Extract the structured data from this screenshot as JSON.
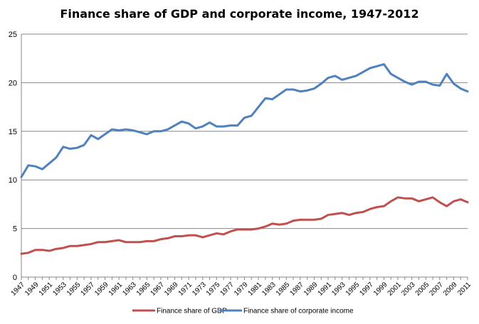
{
  "chart_data": {
    "type": "line",
    "title": "Finance share of GDP and corporate income, 1947-2012",
    "xlabel": "",
    "ylabel": "",
    "ylim": [
      0,
      25
    ],
    "yticks": [
      "0",
      "5",
      "10",
      "15",
      "20",
      "25"
    ],
    "x_tick_labels": [
      "1947",
      "1949",
      "1951",
      "1953",
      "1955",
      "1957",
      "1959",
      "1961",
      "1963",
      "1965",
      "1967",
      "1969",
      "1971",
      "1973",
      "1975",
      "1977",
      "1979",
      "1981",
      "1983",
      "1985",
      "1987",
      "1989",
      "1991",
      "1993",
      "1995",
      "1997",
      "1999",
      "2001",
      "2003",
      "2005",
      "2007",
      "2009",
      "2011"
    ],
    "x": [
      1947,
      1948,
      1949,
      1950,
      1951,
      1952,
      1953,
      1954,
      1955,
      1956,
      1957,
      1958,
      1959,
      1960,
      1961,
      1962,
      1963,
      1964,
      1965,
      1966,
      1967,
      1968,
      1969,
      1970,
      1971,
      1972,
      1973,
      1974,
      1975,
      1976,
      1977,
      1978,
      1979,
      1980,
      1981,
      1982,
      1983,
      1984,
      1985,
      1986,
      1987,
      1988,
      1989,
      1990,
      1991,
      1992,
      1993,
      1994,
      1995,
      1996,
      1997,
      1998,
      1999,
      2000,
      2001,
      2002,
      2003,
      2004,
      2005,
      2006,
      2007,
      2008,
      2009,
      2010,
      2011
    ],
    "grid": true,
    "legend_position": "bottom",
    "series": [
      {
        "name": "Finance share of GDP",
        "color": "#c0504d",
        "values": [
          2.4,
          2.5,
          2.8,
          2.8,
          2.7,
          2.9,
          3.0,
          3.2,
          3.2,
          3.3,
          3.4,
          3.6,
          3.6,
          3.7,
          3.8,
          3.6,
          3.6,
          3.6,
          3.7,
          3.7,
          3.9,
          4.0,
          4.2,
          4.2,
          4.3,
          4.3,
          4.1,
          4.3,
          4.5,
          4.4,
          4.7,
          4.9,
          4.9,
          4.9,
          5.0,
          5.2,
          5.5,
          5.4,
          5.5,
          5.8,
          5.9,
          5.9,
          5.9,
          6.0,
          6.4,
          6.5,
          6.6,
          6.4,
          6.6,
          6.7,
          7.0,
          7.2,
          7.3,
          7.8,
          8.2,
          8.1,
          8.1,
          7.8,
          8.0,
          8.2,
          7.7,
          7.3,
          7.8,
          8.0,
          7.7
        ]
      },
      {
        "name": "Finance share of corporate income",
        "color": "#4f81bd",
        "values": [
          10.3,
          11.5,
          11.4,
          11.1,
          11.7,
          12.3,
          13.4,
          13.2,
          13.3,
          13.6,
          14.6,
          14.2,
          14.7,
          15.2,
          15.1,
          15.2,
          15.1,
          14.9,
          14.7,
          15.0,
          15.0,
          15.2,
          15.6,
          16.0,
          15.8,
          15.3,
          15.5,
          15.9,
          15.5,
          15.5,
          15.6,
          15.6,
          16.4,
          16.6,
          17.5,
          18.4,
          18.3,
          18.8,
          19.3,
          19.3,
          19.1,
          19.2,
          19.4,
          19.9,
          20.5,
          20.7,
          20.3,
          20.5,
          20.7,
          21.1,
          21.5,
          21.7,
          21.9,
          20.9,
          20.5,
          20.1,
          19.8,
          20.1,
          20.1,
          19.8,
          19.7,
          20.9,
          19.9,
          19.4,
          19.1
        ]
      }
    ]
  }
}
